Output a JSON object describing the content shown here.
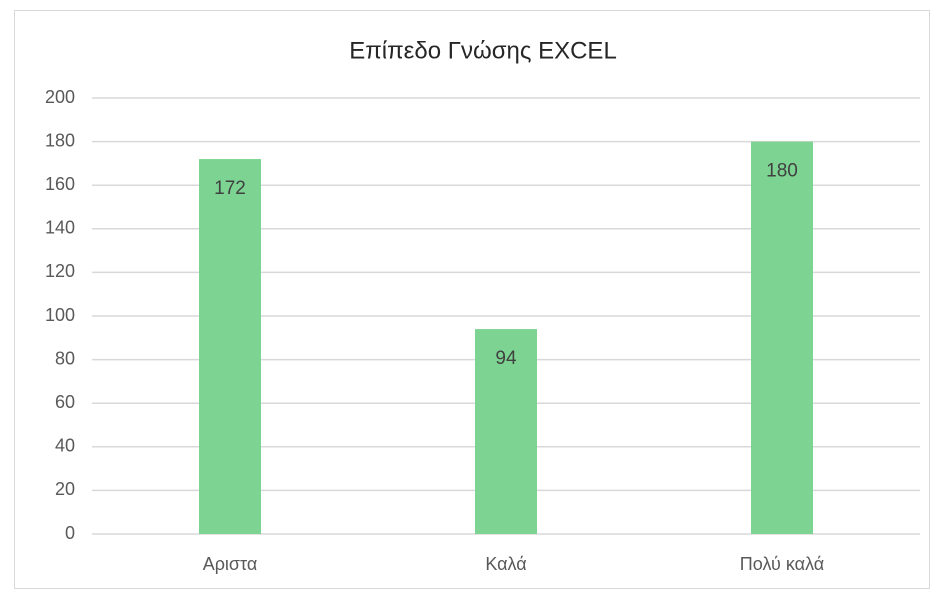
{
  "chart_data": {
    "type": "bar",
    "title": "Επίπεδο Γνώσης EXCEL",
    "categories": [
      "Αριστα",
      "Καλά",
      "Πολύ καλά"
    ],
    "values": [
      172,
      94,
      180
    ],
    "color": "#7dd492",
    "ylim": [
      0,
      200
    ],
    "yticks": [
      0,
      20,
      40,
      60,
      80,
      100,
      120,
      140,
      160,
      180,
      200
    ],
    "grid": true
  }
}
